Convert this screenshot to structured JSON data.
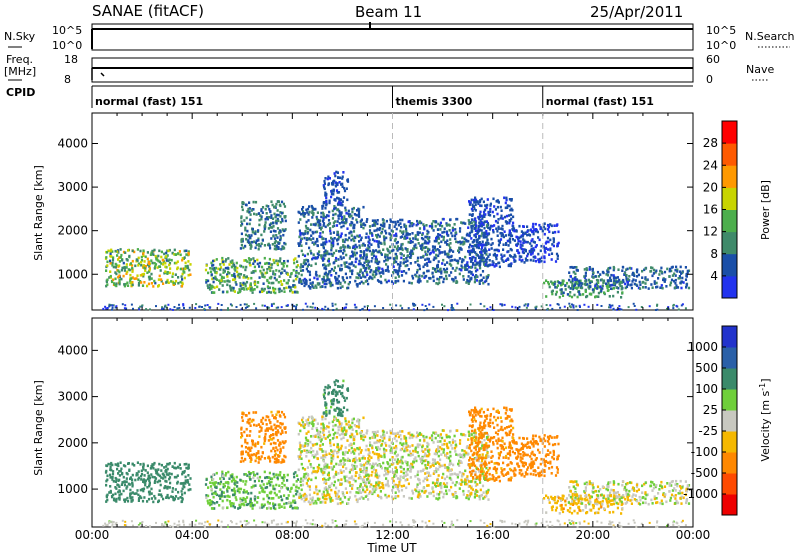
{
  "header": {
    "title_left": "SANAE (fitACF)",
    "title_center": "Beam 11",
    "title_right": "25/Apr/2011"
  },
  "param_panels": {
    "nsky": {
      "label": "N.Sky",
      "ticks": [
        "10^5",
        "10^0"
      ]
    },
    "nsearch": {
      "label": "N.Search",
      "ticks": [
        "10^5",
        "10^0"
      ]
    },
    "freq": {
      "label_line1": "Freq.",
      "label_line2": "[MHz]",
      "ticks": [
        "18",
        "8"
      ]
    },
    "nave": {
      "label": "Nave",
      "ticks": [
        "60",
        "0"
      ]
    },
    "cpid": {
      "label": "CPID",
      "segments": [
        {
          "name": "normal (fast) 151",
          "start": 0,
          "end": 12
        },
        {
          "name": "themis 3300",
          "start": 12,
          "end": 18
        },
        {
          "name": "normal (fast) 151",
          "start": 18,
          "end": 24
        }
      ]
    }
  },
  "chart_data": [
    {
      "type": "heatmap",
      "quantity": "Power",
      "ylabel": "Slant Range [km]",
      "yticks": [
        1000,
        2000,
        3000,
        4000
      ],
      "ylim": [
        180,
        4700
      ],
      "xlim": [
        0,
        24
      ],
      "colorbar": {
        "label": "Power [dB]",
        "tick_labels": [
          "4",
          "8",
          "12",
          "16",
          "20",
          "24",
          "28"
        ],
        "colors": [
          "#2233ee",
          "#1a4fa8",
          "#3f8a6a",
          "#4cae4c",
          "#c8d400",
          "#ff9900",
          "#ff5a00",
          "#ff0000"
        ]
      },
      "echo_regions": [
        {
          "t_start": 0.5,
          "t_end": 3.9,
          "r_min": 750,
          "r_max": 1600,
          "peak": 22
        },
        {
          "t_start": 4.5,
          "t_end": 8.2,
          "r_min": 600,
          "r_max": 1400,
          "peak": 18
        },
        {
          "t_start": 5.9,
          "t_end": 7.7,
          "r_min": 1600,
          "r_max": 2700,
          "peak": 12
        },
        {
          "t_start": 8.2,
          "t_end": 10.8,
          "r_min": 700,
          "r_max": 2600,
          "peak": 10
        },
        {
          "t_start": 9.2,
          "t_end": 10.2,
          "r_min": 2600,
          "r_max": 3400,
          "peak": 8
        },
        {
          "t_start": 10.8,
          "t_end": 15.8,
          "r_min": 800,
          "r_max": 2300,
          "peak": 10
        },
        {
          "t_start": 15.0,
          "t_end": 16.8,
          "r_min": 1200,
          "r_max": 2800,
          "peak": 8
        },
        {
          "t_start": 16.8,
          "t_end": 18.6,
          "r_min": 1300,
          "r_max": 2200,
          "peak": 6
        },
        {
          "t_start": 18.0,
          "t_end": 21.2,
          "r_min": 500,
          "r_max": 900,
          "peak": 16
        },
        {
          "t_start": 19.0,
          "t_end": 23.8,
          "r_min": 700,
          "r_max": 1200,
          "peak": 10
        }
      ]
    },
    {
      "type": "heatmap",
      "quantity": "Velocity",
      "ylabel": "Slant Range [km]",
      "yticks": [
        1000,
        2000,
        3000,
        4000
      ],
      "ylim": [
        180,
        4700
      ],
      "xlim": [
        0,
        24
      ],
      "xlabel": "Time UT",
      "xtick_labels": [
        "00:00",
        "04:00",
        "08:00",
        "12:00",
        "16:00",
        "20:00",
        "00:00"
      ],
      "colorbar": {
        "label": "Velocity [m s^-1]",
        "tick_labels": [
          "1000",
          "500",
          "100",
          "25",
          "-25",
          "-100",
          "-500",
          "-1000"
        ],
        "colors": [
          "#2233cc",
          "#2a60a8",
          "#3a8a6a",
          "#6fcf3a",
          "#c8c8c0",
          "#f5b800",
          "#ff8800",
          "#ff4a00",
          "#ee0000"
        ]
      },
      "echo_regions": [
        {
          "t_start": 0.5,
          "t_end": 3.9,
          "r_min": 750,
          "r_max": 1600,
          "velocity": 300
        },
        {
          "t_start": 4.5,
          "t_end": 8.2,
          "r_min": 600,
          "r_max": 1400,
          "velocity": 80
        },
        {
          "t_start": 5.9,
          "t_end": 7.7,
          "r_min": 1600,
          "r_max": 2700,
          "velocity": -150
        },
        {
          "t_start": 8.2,
          "t_end": 10.8,
          "r_min": 700,
          "r_max": 2600,
          "velocity": 0
        },
        {
          "t_start": 9.2,
          "t_end": 10.2,
          "r_min": 2600,
          "r_max": 3400,
          "velocity": 150
        },
        {
          "t_start": 10.8,
          "t_end": 15.8,
          "r_min": 800,
          "r_max": 2300,
          "velocity": 0
        },
        {
          "t_start": 15.0,
          "t_end": 16.8,
          "r_min": 1200,
          "r_max": 2800,
          "velocity": -150
        },
        {
          "t_start": 16.8,
          "t_end": 18.6,
          "r_min": 1300,
          "r_max": 2200,
          "velocity": -300
        },
        {
          "t_start": 18.0,
          "t_end": 21.2,
          "r_min": 500,
          "r_max": 900,
          "velocity": -60
        },
        {
          "t_start": 19.0,
          "t_end": 23.8,
          "r_min": 700,
          "r_max": 1200,
          "velocity": 0
        }
      ]
    }
  ]
}
